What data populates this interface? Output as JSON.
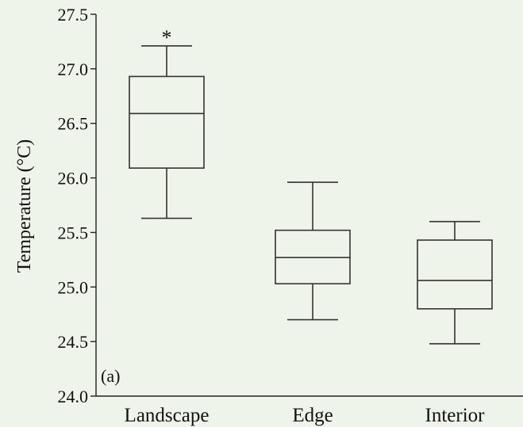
{
  "chart_data": {
    "type": "box",
    "ylabel": "Temperature (°C)",
    "xlabel": "",
    "panel_label": "(a)",
    "ylim": [
      24.0,
      27.5
    ],
    "yticks": [
      "24.0",
      "24.5",
      "25.0",
      "25.5",
      "26.0",
      "26.5",
      "27.0",
      "27.5"
    ],
    "categories": [
      "Landscape",
      "Edge",
      "Interior"
    ],
    "boxes": [
      {
        "category": "Landscape",
        "whisker_low": 25.63,
        "q1": 26.09,
        "median": 26.59,
        "q3": 26.93,
        "whisker_high": 27.21,
        "outlier_marker": "*"
      },
      {
        "category": "Edge",
        "whisker_low": 24.7,
        "q1": 25.03,
        "median": 25.27,
        "q3": 25.52,
        "whisker_high": 25.96
      },
      {
        "category": "Interior",
        "whisker_low": 24.48,
        "q1": 24.8,
        "median": 25.06,
        "q3": 25.43,
        "whisker_high": 25.6
      }
    ],
    "grid": false,
    "legend": "none"
  }
}
